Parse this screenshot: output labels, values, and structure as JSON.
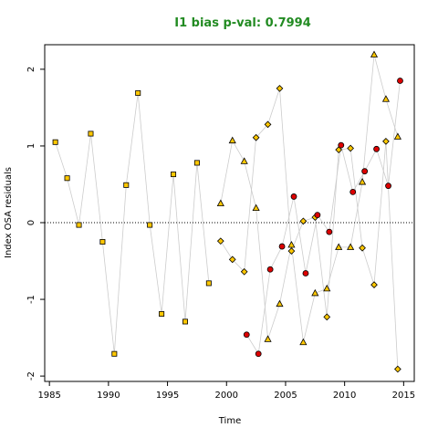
{
  "chart_data": {
    "type": "scatter",
    "title": "I1 bias p-val: 0.7994",
    "xlabel": "Time",
    "ylabel": "Index OSA residuals",
    "xlim": [
      1984.6,
      2015.9
    ],
    "ylim": [
      -2.07,
      2.32
    ],
    "xticks": [
      1985,
      1990,
      1995,
      2000,
      2005,
      2010,
      2015
    ],
    "yticks": [
      -2,
      -1,
      0,
      1,
      2
    ],
    "reference_line_y": 0,
    "grid": false,
    "colors": {
      "title": "#228B22",
      "marker_fill_gold": "#FFC800",
      "marker_fill_red": "#DD0000",
      "connector": "#CCCCCC",
      "axis": "#000000"
    },
    "series": [
      {
        "marker": "square",
        "fill": "#FFC800",
        "x": [
          1985.5,
          1986.5,
          1987.5,
          1988.5,
          1989.5,
          1990.5,
          1991.5,
          1992.5,
          1993.5,
          1994.5,
          1995.5,
          1996.5,
          1997.5,
          1998.5
        ],
        "y": [
          1.05,
          0.58,
          -0.03,
          1.16,
          -0.25,
          -1.71,
          0.49,
          1.69,
          -0.03,
          -1.19,
          0.63,
          -1.29,
          0.78,
          -0.79
        ]
      },
      {
        "marker": "triangle",
        "fill": "#FFC800",
        "x": [
          1999.5,
          2000.5,
          2001.5,
          2002.5,
          2003.5,
          2004.5,
          2005.5,
          2006.5,
          2007.5,
          2008.5,
          2009.5,
          2010.5,
          2011.5,
          2012.5,
          2013.5,
          2014.5
        ],
        "y": [
          0.25,
          1.07,
          0.8,
          0.19,
          -1.52,
          -1.06,
          -0.29,
          -1.56,
          -0.92,
          -0.86,
          -0.32,
          -0.32,
          0.53,
          2.19,
          1.61,
          1.12
        ]
      },
      {
        "marker": "diamond",
        "fill": "#FFC800",
        "x": [
          1999.5,
          2000.5,
          2001.5,
          2002.5,
          2003.5,
          2004.5,
          2005.5,
          2006.5,
          2007.5,
          2008.5,
          2009.5,
          2010.5,
          2011.5,
          2012.5,
          2013.5,
          2014.5
        ],
        "y": [
          -0.24,
          -0.48,
          -0.64,
          1.11,
          1.28,
          1.75,
          -0.37,
          0.02,
          0.07,
          -1.23,
          0.95,
          0.97,
          -0.33,
          -0.81,
          1.06,
          -1.91
        ]
      },
      {
        "marker": "circle",
        "fill": "#DD0000",
        "x": [
          2001.7,
          2002.7,
          2003.7,
          2004.7,
          2005.7,
          2006.7,
          2007.7,
          2008.7,
          2009.7,
          2010.7,
          2011.7,
          2012.7,
          2013.7,
          2014.7
        ],
        "y": [
          -1.46,
          -1.71,
          -0.61,
          -0.31,
          0.34,
          -0.66,
          0.1,
          -0.12,
          1.01,
          0.4,
          0.67,
          0.96,
          0.48,
          1.85
        ]
      }
    ]
  }
}
